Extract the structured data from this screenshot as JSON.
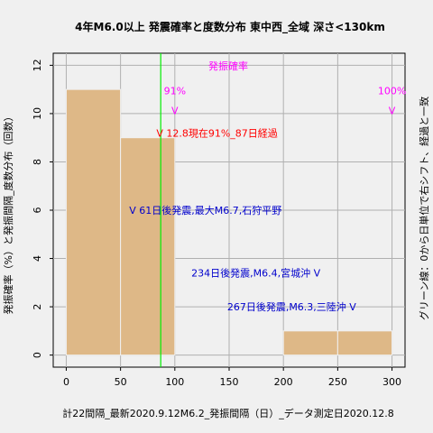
{
  "chart_data": {
    "type": "bar",
    "title": "4年M6.0以上 発震確率と度数分布 東中西_全域 深さ<130km",
    "xlabel": "計22間隔_最新2020.9.12M6.2_発振間隔（日）_データ測定日2020.12.8",
    "ylabel": "発振確率（%）と発振間隔_度数分布（回数）",
    "right_label": "グリーン線：0から日単位で右シフト、経過と一致",
    "xlim": [
      -12,
      312
    ],
    "ylim": [
      -0.5,
      12.5
    ],
    "x_ticks": [
      0,
      50,
      100,
      150,
      200,
      250,
      300
    ],
    "y_ticks": [
      0,
      2,
      4,
      6,
      8,
      10,
      12
    ],
    "grid": true,
    "bars": [
      {
        "start": 0,
        "end": 50,
        "value": 11
      },
      {
        "start": 50,
        "end": 100,
        "value": 9
      },
      {
        "start": 100,
        "end": 150,
        "value": 0
      },
      {
        "start": 150,
        "end": 200,
        "value": 0
      },
      {
        "start": 200,
        "end": 250,
        "value": 1
      },
      {
        "start": 250,
        "end": 300,
        "value": 1
      }
    ],
    "bar_color": "#deb887",
    "green_line_x": 87,
    "green_color": "#00ee00",
    "probability_label": "発振確率",
    "probability_color": "#ff00ff",
    "probability_markers": [
      {
        "x": 100,
        "y": 10.8,
        "label": "91%",
        "mark": "V"
      },
      {
        "x": 300,
        "y": 10.8,
        "label": "100%",
        "mark": "V"
      }
    ],
    "annotations": [
      {
        "x": 83,
        "y": 9.2,
        "text": "V 12.8現在91%_87日経過",
        "color": "#ff0000",
        "anchor": "start"
      },
      {
        "x": 58,
        "y": 6.0,
        "text": "V 61日後発震,最大M6.7,石狩平野",
        "color": "#0000cc",
        "anchor": "start"
      },
      {
        "x": 234,
        "y": 3.4,
        "text": "234日後発震,M6.4,宮城沖 V",
        "color": "#0000cc",
        "anchor": "end"
      },
      {
        "x": 267,
        "y": 2.0,
        "text": "267日後発震,M6.3,三陸沖 V",
        "color": "#0000cc",
        "anchor": "end"
      }
    ]
  }
}
